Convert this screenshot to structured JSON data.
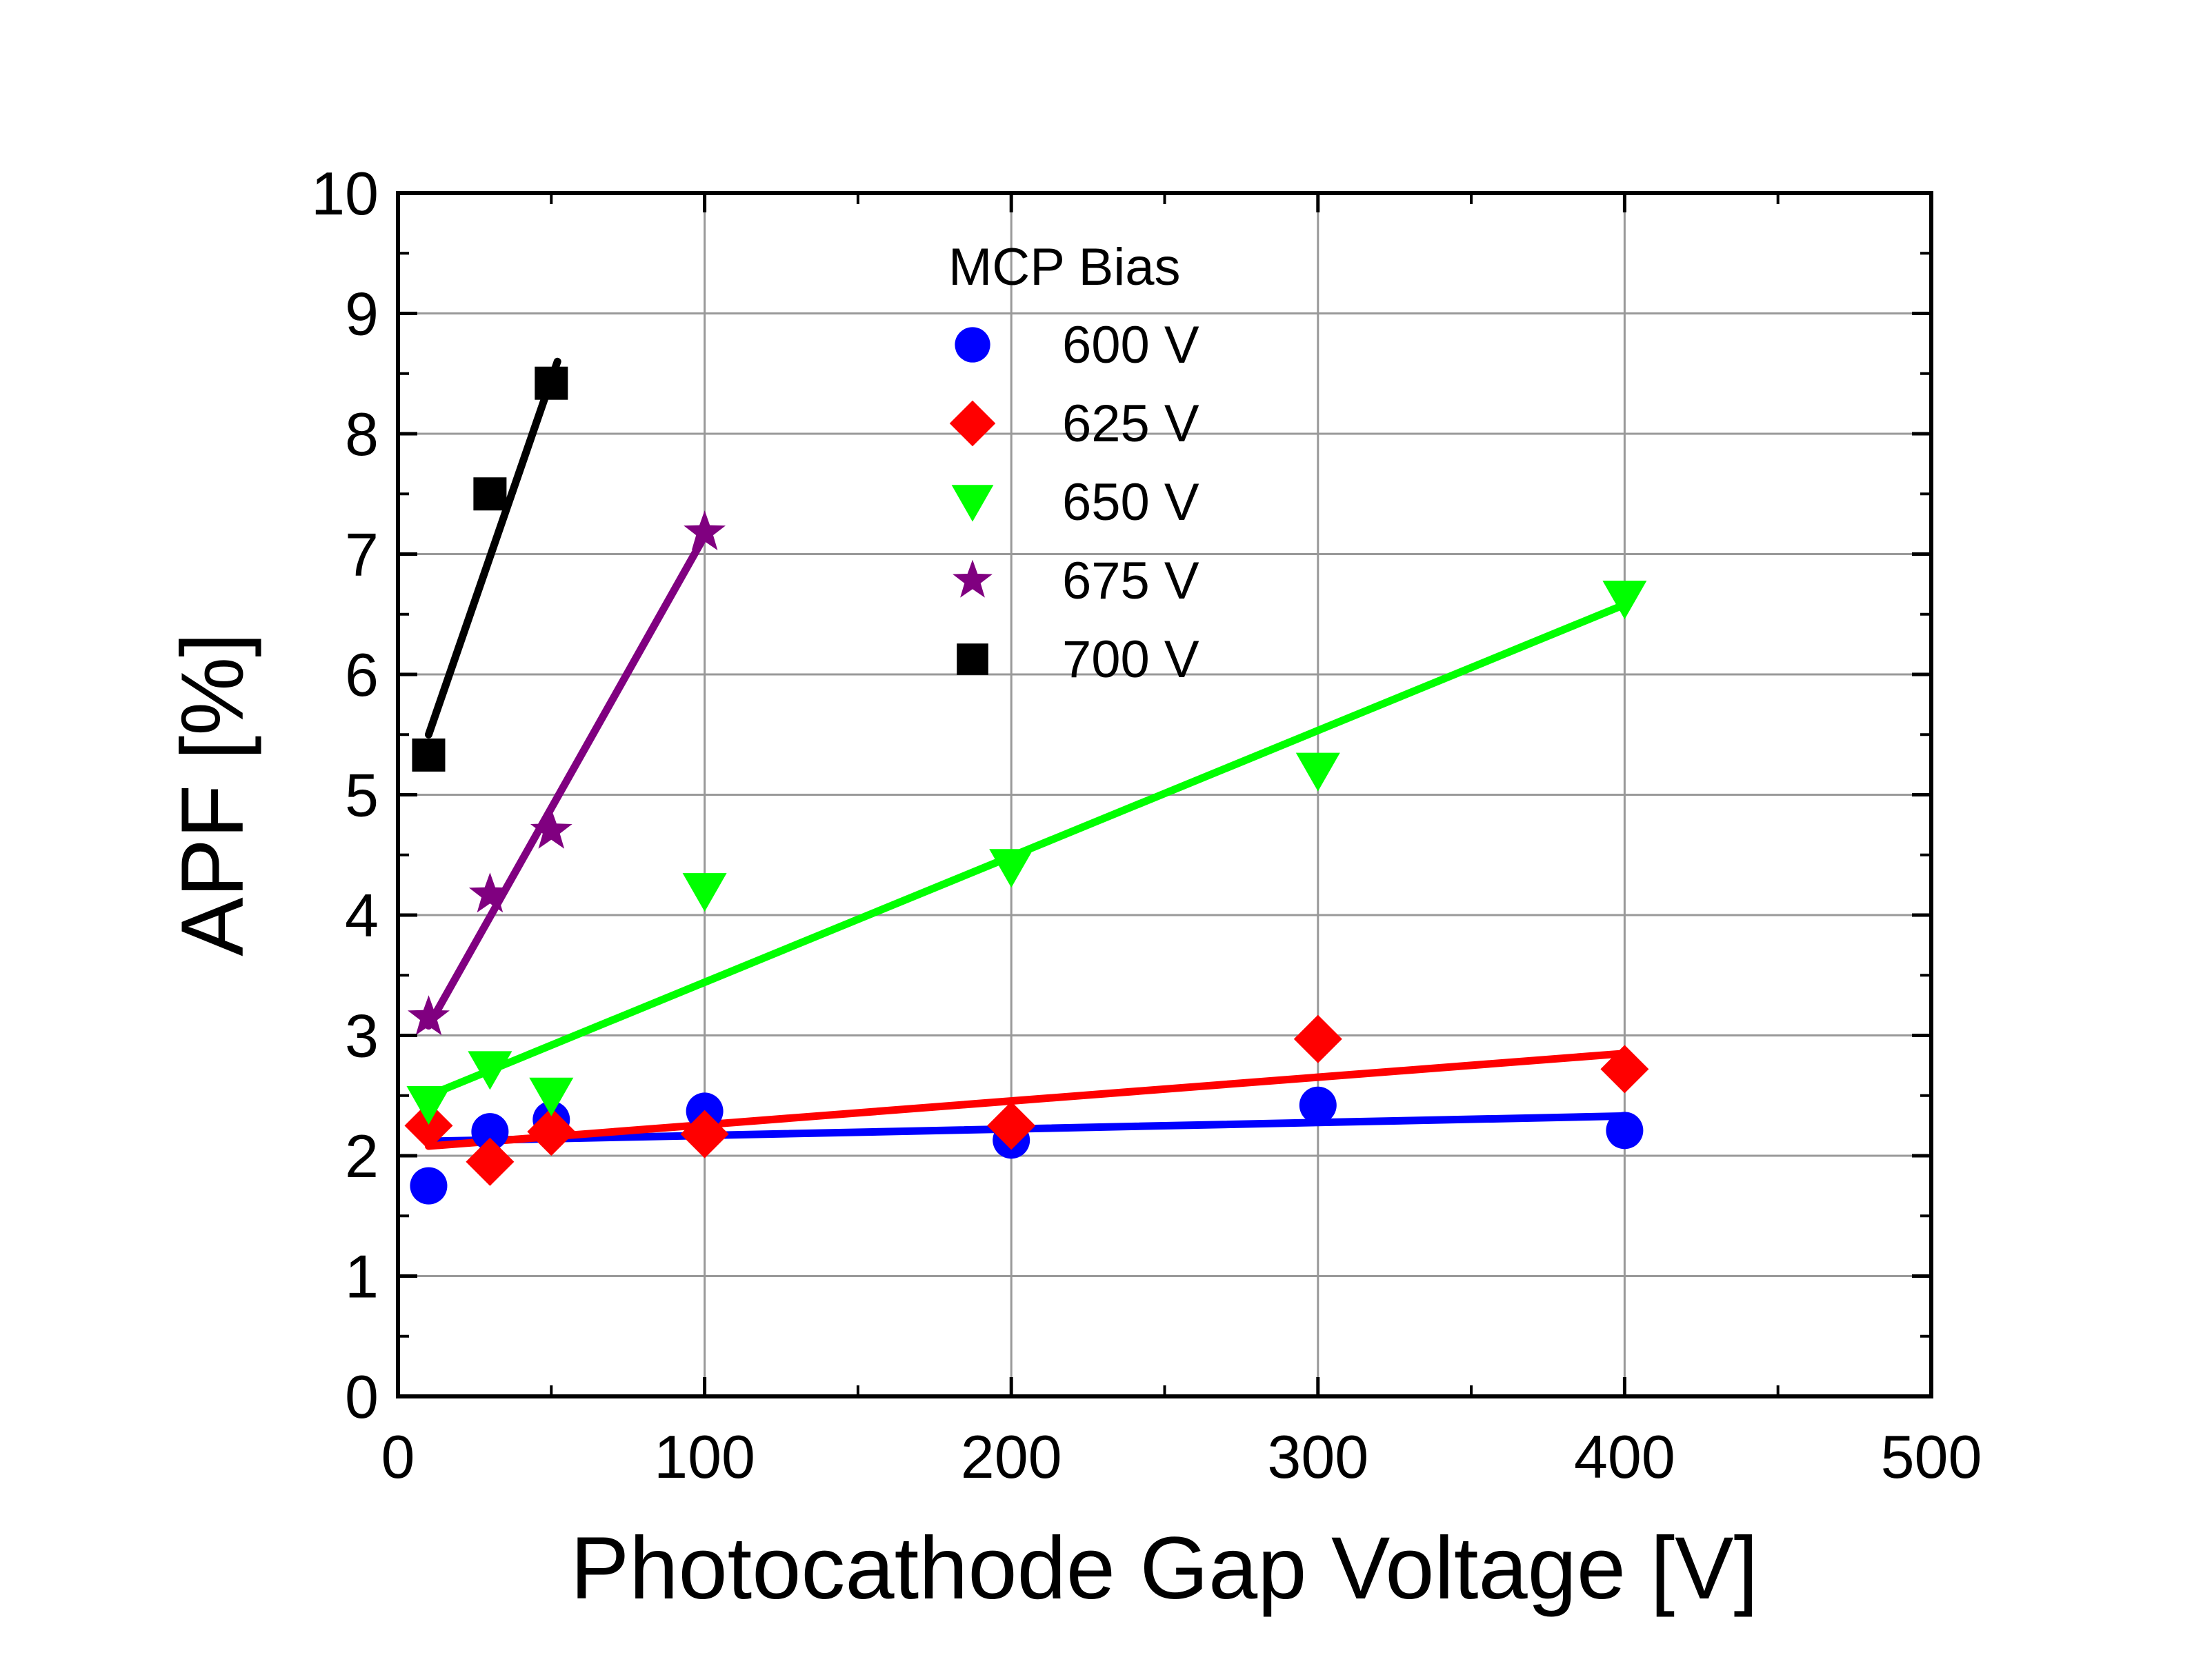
{
  "chart_data": {
    "type": "scatter",
    "title": "",
    "xlabel": "Photocathode Gap Voltage [V]",
    "ylabel": "APF [%]",
    "xlim": [
      0,
      500
    ],
    "ylim": [
      0,
      10
    ],
    "xticks": [
      0,
      100,
      200,
      300,
      400,
      500
    ],
    "yticks": [
      0,
      1,
      2,
      3,
      4,
      5,
      6,
      7,
      8,
      9,
      10
    ],
    "grid": true,
    "legend": {
      "title": "MCP Bias",
      "position": "top-center"
    },
    "series": [
      {
        "name": "600 V",
        "marker": "circle",
        "color": "#0000ff",
        "x": [
          10,
          30,
          50,
          100,
          200,
          300,
          400
        ],
        "y": [
          1.75,
          2.2,
          2.3,
          2.37,
          2.13,
          2.42,
          2.21
        ],
        "fit": {
          "x": [
            10,
            400
          ],
          "y": [
            2.12,
            2.33
          ]
        }
      },
      {
        "name": "625 V",
        "marker": "diamond",
        "color": "#ff0000",
        "x": [
          10,
          30,
          50,
          100,
          200,
          300,
          400
        ],
        "y": [
          2.25,
          1.95,
          2.2,
          2.18,
          2.25,
          2.97,
          2.72
        ],
        "fit": {
          "x": [
            10,
            400
          ],
          "y": [
            2.08,
            2.85
          ]
        }
      },
      {
        "name": "650 V",
        "marker": "triangle-down",
        "color": "#00ff00",
        "x": [
          10,
          30,
          50,
          100,
          200,
          300,
          400
        ],
        "y": [
          2.43,
          2.72,
          2.5,
          4.2,
          4.4,
          5.2,
          6.63
        ],
        "fit": {
          "x": [
            10,
            400
          ],
          "y": [
            2.5,
            6.58
          ]
        }
      },
      {
        "name": "675 V",
        "marker": "star",
        "color": "#800080",
        "x": [
          10,
          30,
          50,
          100
        ],
        "y": [
          3.15,
          4.17,
          4.7,
          7.18
        ],
        "fit": {
          "x": [
            10,
            100
          ],
          "y": [
            3.08,
            7.15
          ]
        }
      },
      {
        "name": "700 V",
        "marker": "square",
        "color": "#000000",
        "x": [
          10,
          30,
          50
        ],
        "y": [
          5.33,
          7.5,
          8.42
        ],
        "fit": {
          "x": [
            10,
            52
          ],
          "y": [
            5.5,
            8.6
          ]
        }
      }
    ]
  }
}
